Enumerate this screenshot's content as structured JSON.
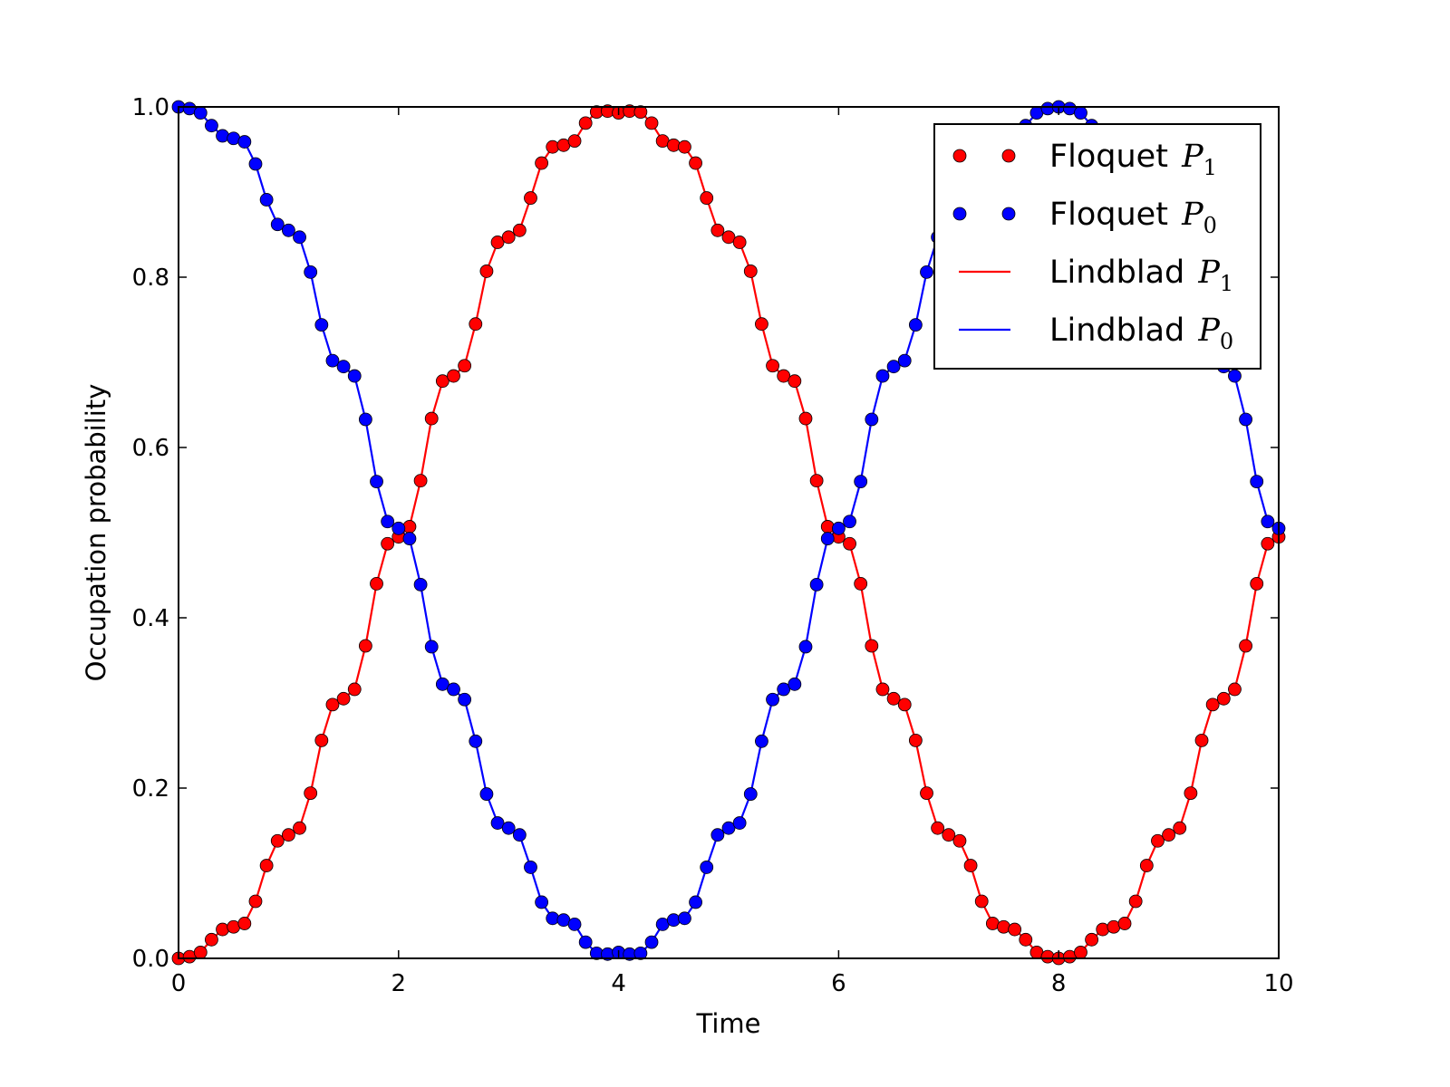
{
  "chart_data": {
    "type": "line",
    "title": "",
    "xlabel": "Time",
    "ylabel": "Occupation probability",
    "xlim": [
      0,
      10
    ],
    "ylim": [
      0,
      1.0
    ],
    "xticks": [
      "0",
      "2",
      "4",
      "6",
      "8",
      "10"
    ],
    "yticks": [
      "0.0",
      "0.2",
      "0.4",
      "0.6",
      "0.8",
      "1.0"
    ],
    "grid": false,
    "legend_position": "top-right",
    "x_start": 0,
    "x_step": 0.1,
    "series": [
      {
        "name": "Floquet P1",
        "kind": "markers",
        "color": "#ff0000",
        "ref": "P1"
      },
      {
        "name": "Floquet P0",
        "kind": "markers",
        "color": "#0000ff",
        "ref": "P0"
      },
      {
        "name": "Lindblad P1",
        "kind": "line",
        "color": "#ff0000",
        "ref": "P1"
      },
      {
        "name": "Lindblad P0",
        "kind": "line",
        "color": "#0000ff",
        "ref": "P0"
      }
    ],
    "values": {
      "P1": [
        0.0,
        0.002,
        0.007,
        0.022,
        0.034,
        0.037,
        0.041,
        0.067,
        0.109,
        0.138,
        0.145,
        0.153,
        0.194,
        0.256,
        0.298,
        0.305,
        0.316,
        0.367,
        0.44,
        0.487,
        0.495,
        0.507,
        0.561,
        0.634,
        0.678,
        0.684,
        0.696,
        0.745,
        0.807,
        0.841,
        0.847,
        0.855,
        0.893,
        0.934,
        0.953,
        0.955,
        0.96,
        0.981,
        0.994,
        0.995,
        0.993,
        0.995,
        0.994,
        0.981,
        0.96,
        0.955,
        0.953,
        0.934,
        0.893,
        0.855,
        0.847,
        0.841,
        0.807,
        0.745,
        0.696,
        0.684,
        0.678,
        0.634,
        0.561,
        0.507,
        0.495,
        0.487,
        0.44,
        0.367,
        0.316,
        0.305,
        0.298,
        0.256,
        0.194,
        0.153,
        0.145,
        0.138,
        0.109,
        0.067,
        0.041,
        0.037,
        0.034,
        0.022,
        0.007,
        0.002,
        0.0,
        0.002,
        0.007,
        0.022,
        0.034,
        0.037,
        0.041,
        0.067,
        0.109,
        0.138,
        0.145,
        0.153,
        0.194,
        0.256,
        0.298,
        0.305,
        0.316,
        0.367,
        0.44,
        0.487,
        0.495
      ],
      "P0": [
        1.0,
        0.998,
        0.993,
        0.978,
        0.966,
        0.963,
        0.959,
        0.933,
        0.891,
        0.862,
        0.855,
        0.847,
        0.806,
        0.744,
        0.702,
        0.695,
        0.684,
        0.633,
        0.56,
        0.513,
        0.505,
        0.493,
        0.439,
        0.366,
        0.322,
        0.316,
        0.304,
        0.255,
        0.193,
        0.159,
        0.153,
        0.145,
        0.107,
        0.066,
        0.047,
        0.045,
        0.04,
        0.019,
        0.006,
        0.005,
        0.007,
        0.005,
        0.006,
        0.019,
        0.04,
        0.045,
        0.047,
        0.066,
        0.107,
        0.145,
        0.153,
        0.159,
        0.193,
        0.255,
        0.304,
        0.316,
        0.322,
        0.366,
        0.439,
        0.493,
        0.505,
        0.513,
        0.56,
        0.633,
        0.684,
        0.695,
        0.702,
        0.744,
        0.806,
        0.847,
        0.855,
        0.862,
        0.891,
        0.933,
        0.959,
        0.963,
        0.966,
        0.978,
        0.993,
        0.998,
        1.0,
        0.998,
        0.993,
        0.978,
        0.966,
        0.963,
        0.959,
        0.933,
        0.891,
        0.862,
        0.855,
        0.847,
        0.806,
        0.744,
        0.702,
        0.695,
        0.684,
        0.633,
        0.56,
        0.513,
        0.505
      ]
    },
    "legend": [
      {
        "label": "Floquet",
        "math": "P",
        "sub": "1",
        "kind": "markers",
        "color": "#ff0000"
      },
      {
        "label": "Floquet",
        "math": "P",
        "sub": "0",
        "kind": "markers",
        "color": "#0000ff"
      },
      {
        "label": "Lindblad",
        "math": "P",
        "sub": "1",
        "kind": "line",
        "color": "#ff0000"
      },
      {
        "label": "Lindblad",
        "math": "P",
        "sub": "0",
        "kind": "line",
        "color": "#0000ff"
      }
    ]
  }
}
